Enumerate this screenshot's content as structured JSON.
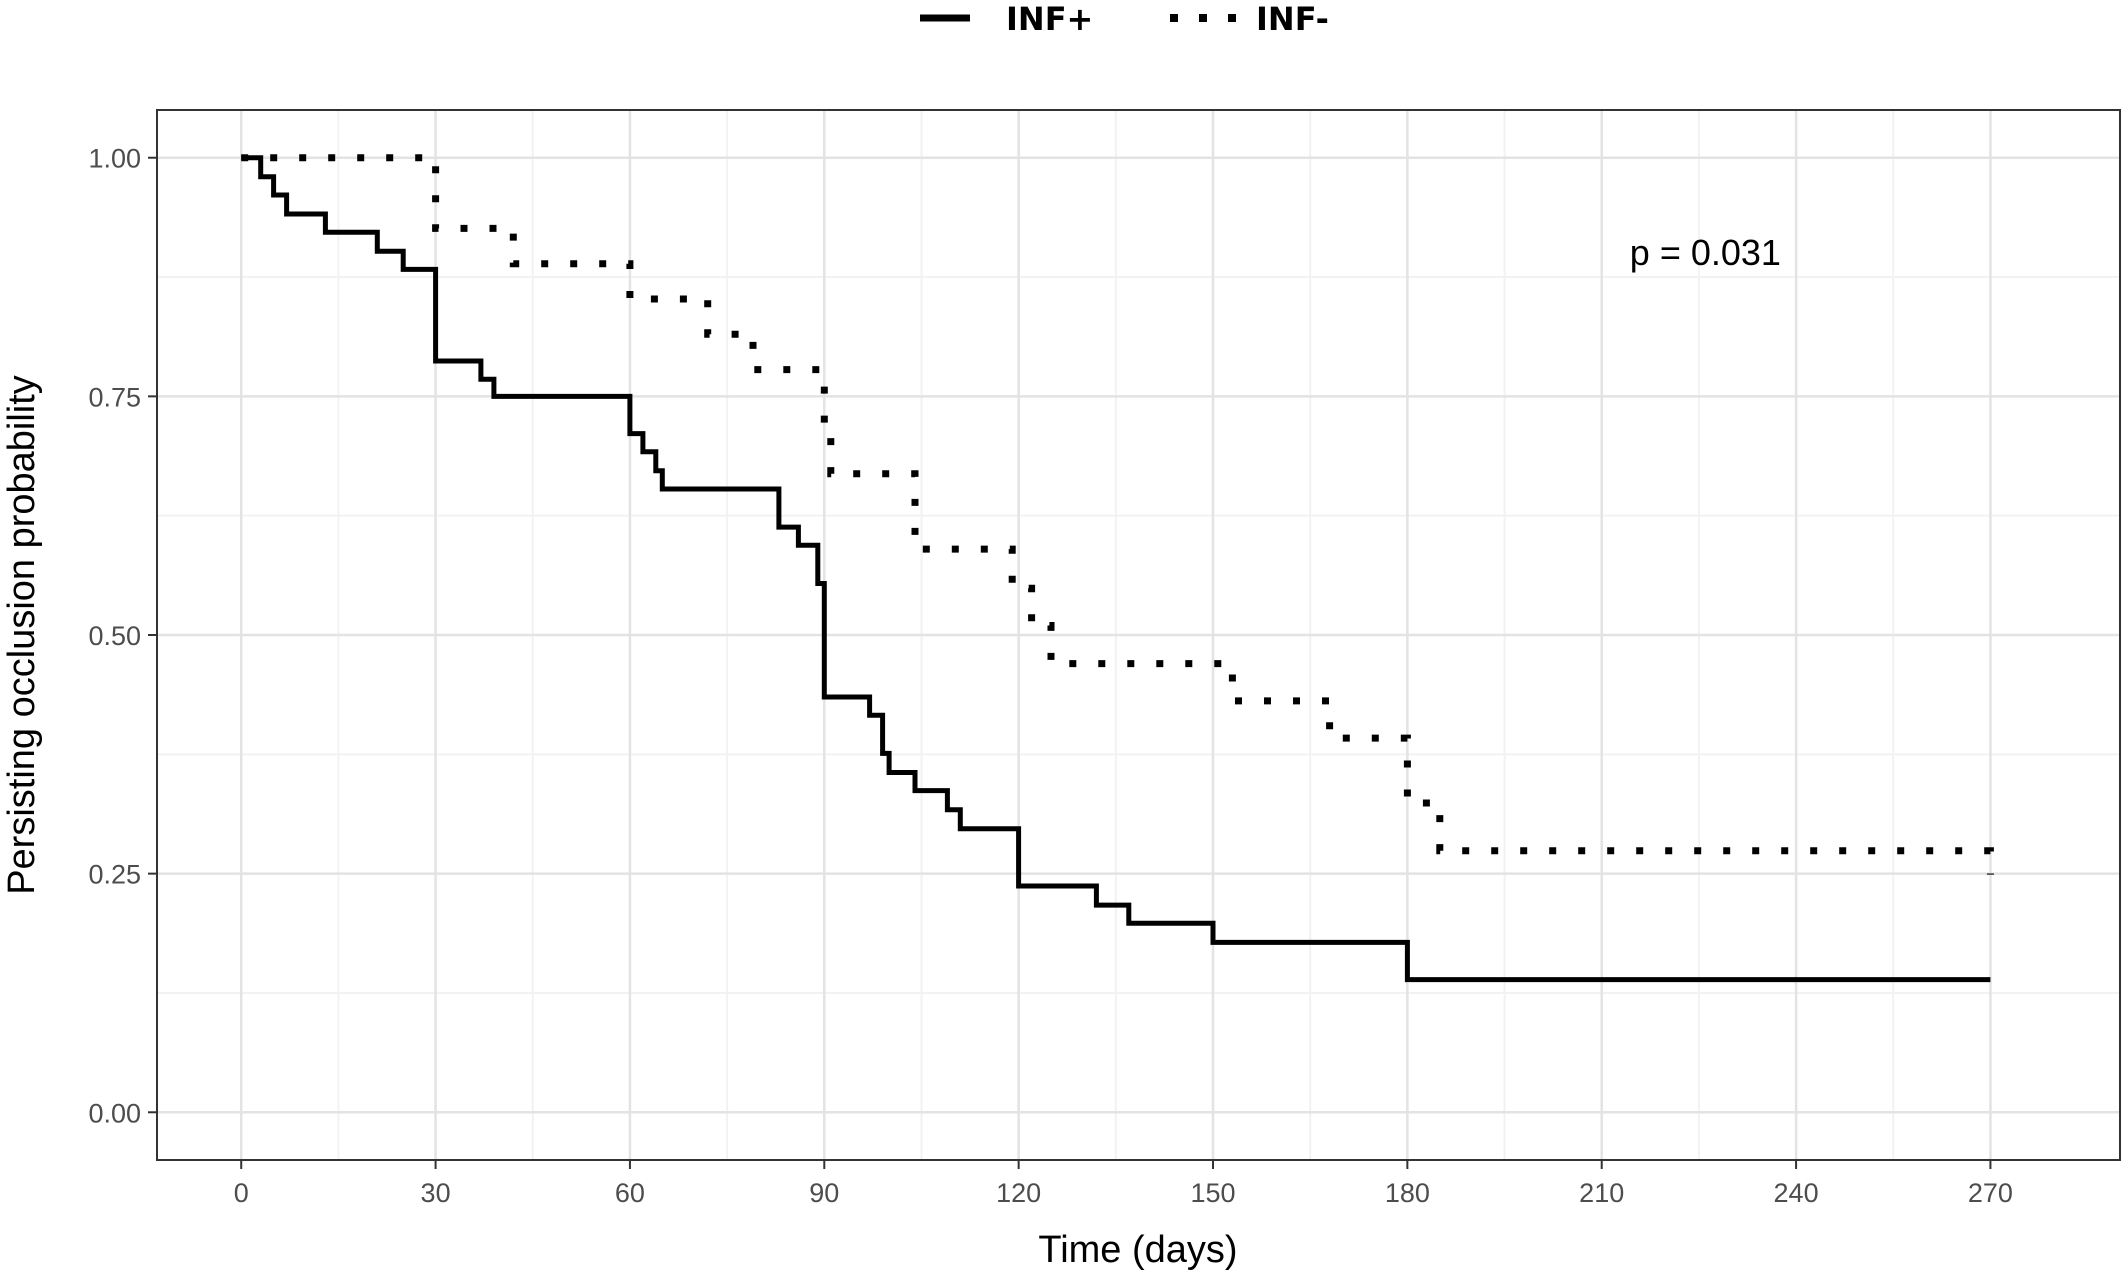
{
  "chart_data": {
    "type": "line",
    "subtype": "kaplan-meier step",
    "xlabel": "Time (days)",
    "ylabel": "Persisting occlusion probability",
    "xlim": [
      -13,
      290
    ],
    "ylim": [
      -0.05,
      1.05
    ],
    "x_ticks": [
      0,
      30,
      60,
      90,
      120,
      150,
      180,
      210,
      240,
      270
    ],
    "y_ticks": [
      0.0,
      0.25,
      0.5,
      0.75,
      1.0
    ],
    "y_tick_labels": [
      "0.00",
      "0.25",
      "0.50",
      "0.75",
      "1.00"
    ],
    "grid": true,
    "legend_position": "top",
    "annotation": {
      "text": "p = 0.031",
      "x": 226,
      "y": 0.9
    },
    "series": [
      {
        "name": "INF+",
        "line_style": "solid",
        "color": "#000000",
        "x": [
          0,
          3,
          5,
          7,
          13,
          21,
          25,
          30,
          37,
          39,
          60,
          62,
          64,
          65,
          83,
          86,
          89,
          90,
          97,
          99,
          100,
          104,
          109,
          111,
          120,
          132,
          137,
          150,
          180,
          270
        ],
        "y": [
          1.0,
          0.98,
          0.961,
          0.941,
          0.922,
          0.902,
          0.883,
          0.787,
          0.768,
          0.75,
          0.711,
          0.692,
          0.672,
          0.653,
          0.613,
          0.594,
          0.554,
          0.435,
          0.416,
          0.376,
          0.356,
          0.337,
          0.317,
          0.297,
          0.237,
          0.217,
          0.198,
          0.178,
          0.139,
          0.139
        ]
      },
      {
        "name": "INF-",
        "line_style": "dotted",
        "color": "#000000",
        "x": [
          0,
          30,
          42,
          60,
          72,
          79,
          90,
          91,
          104,
          119,
          122,
          125,
          153,
          168,
          180,
          185,
          270
        ],
        "y": [
          1.0,
          0.926,
          0.889,
          0.852,
          0.815,
          0.778,
          0.718,
          0.669,
          0.59,
          0.549,
          0.51,
          0.47,
          0.431,
          0.392,
          0.324,
          0.274,
          0.249
        ]
      }
    ]
  }
}
